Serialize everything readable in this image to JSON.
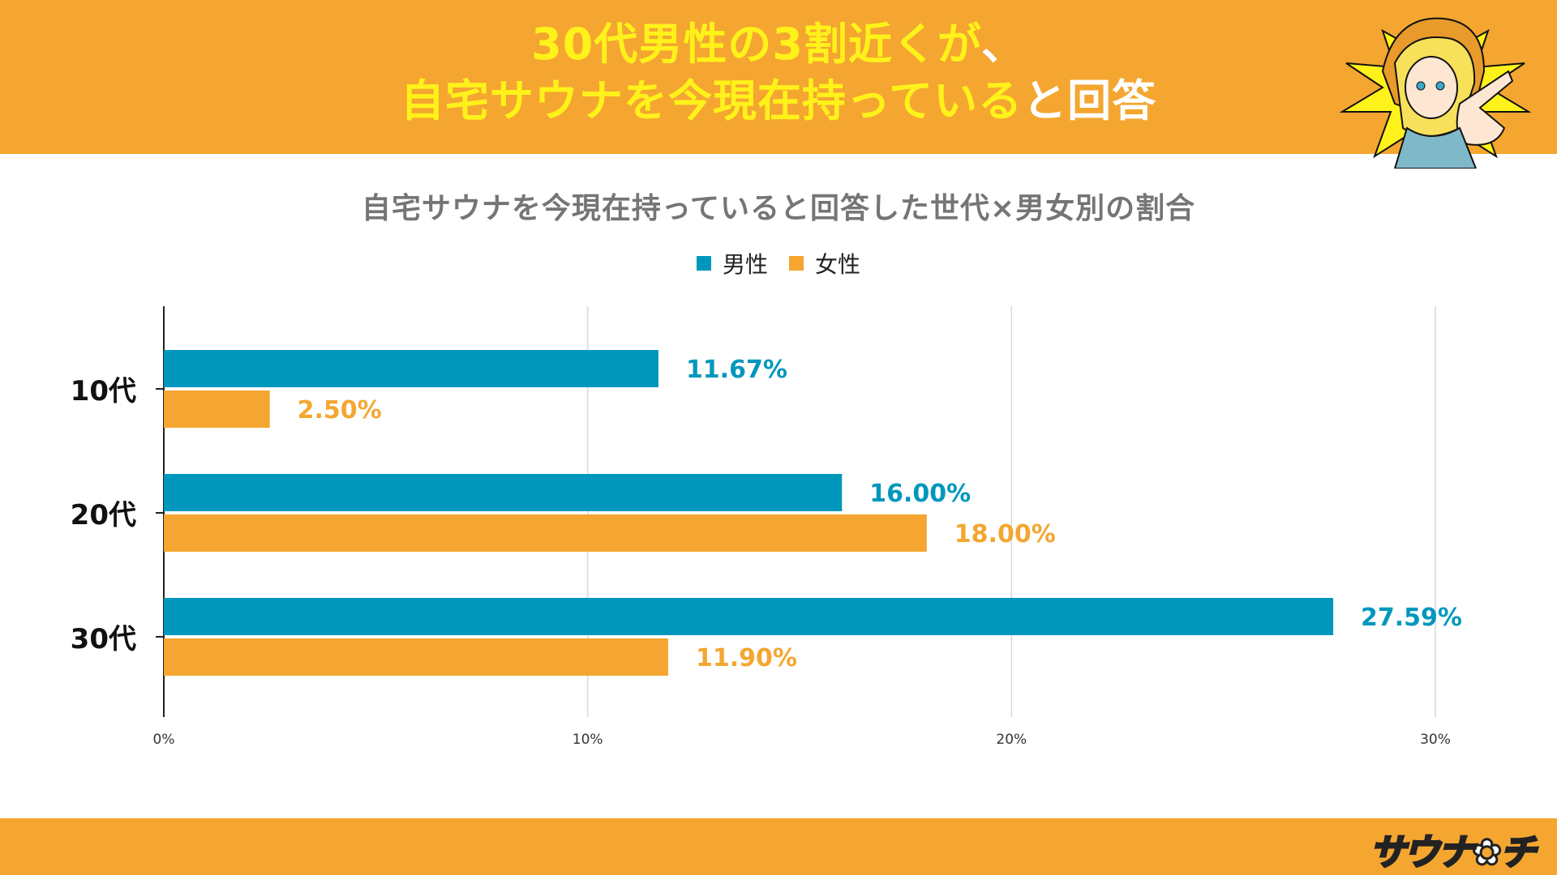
{
  "header": {
    "line1_highlight": "30代男性の3割近くが",
    "line1_rest": "、",
    "line2_highlight": "自宅サウナを今現在持っている",
    "line2_rest": "と回答"
  },
  "brand": {
    "logo_text": "サウナ✿チ"
  },
  "colors": {
    "banner": "#F4A631",
    "headline_yellow": "#FFF21A",
    "male": "#0097BD",
    "female": "#F4A631"
  },
  "chart_data": {
    "type": "bar",
    "orientation": "horizontal",
    "title": "自宅サウナを今現在持っていると回答した世代×男女別の割合",
    "categories": [
      "10代",
      "20代",
      "30代"
    ],
    "series": [
      {
        "name": "男性",
        "color": "#0097BD",
        "values": [
          11.67,
          16.0,
          27.59
        ],
        "labels": [
          "11.67%",
          "16.00%",
          "27.59%"
        ]
      },
      {
        "name": "女性",
        "color": "#F4A631",
        "values": [
          2.5,
          18.0,
          11.9
        ],
        "labels": [
          "2.50%",
          "18.00%",
          "11.90%"
        ]
      }
    ],
    "xlim": [
      0,
      30
    ],
    "xticks": [
      0,
      10,
      20,
      30
    ],
    "xtick_labels": [
      "0%",
      "10%",
      "20%",
      "30%"
    ],
    "grid": true,
    "legend": "top-center"
  }
}
